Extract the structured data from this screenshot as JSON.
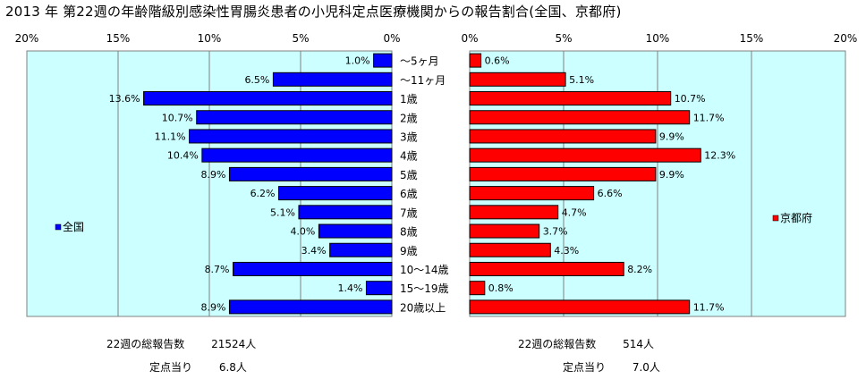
{
  "title": "2013 年 第22週の年齢階級別感染性胃腸炎患者の小児科定点医療機関からの報告割合(全国、京都府)",
  "chart_data": {
    "type": "bar",
    "orientation": "horizontal",
    "categories": [
      "～5ヶ月",
      "～11ヶ月",
      "1歳",
      "2歳",
      "3歳",
      "4歳",
      "5歳",
      "6歳",
      "7歳",
      "8歳",
      "9歳",
      "10～14歳",
      "15～19歳",
      "20歳以上"
    ],
    "series": [
      {
        "name": "全国",
        "values": [
          1.0,
          6.5,
          13.6,
          10.7,
          11.1,
          10.4,
          8.9,
          6.2,
          5.1,
          4.0,
          3.4,
          8.7,
          1.4,
          8.9
        ],
        "labels": [
          "1.0%",
          "6.5%",
          "13.6%",
          "10.7%",
          "11.1%",
          "10.4%",
          "8.9%",
          "6.2%",
          "5.1%",
          "4.0%",
          "3.4%",
          "8.7%",
          "1.4%",
          "8.9%"
        ],
        "color": "#0000ff",
        "direction": "left"
      },
      {
        "name": "京都府",
        "values": [
          0.6,
          5.1,
          10.7,
          11.7,
          9.9,
          12.3,
          9.9,
          6.6,
          4.7,
          3.7,
          4.3,
          8.2,
          0.8,
          11.7
        ],
        "labels": [
          "0.6%",
          "5.1%",
          "10.7%",
          "11.7%",
          "9.9%",
          "12.3%",
          "9.9%",
          "6.6%",
          "4.7%",
          "3.7%",
          "4.3%",
          "8.2%",
          "0.8%",
          "11.7%"
        ],
        "color": "#ff0000",
        "direction": "right"
      }
    ],
    "xlim": [
      0,
      20
    ],
    "ticks": [
      20,
      15,
      10,
      5,
      0
    ],
    "tick_labels_left": [
      "20%",
      "15%",
      "10%",
      "5%",
      "0%"
    ],
    "tick_labels_right": [
      "0%",
      "5%",
      "10%",
      "15%",
      "20%"
    ],
    "grid": true,
    "plot_background": "#ccffff",
    "legend_placement": "inside-left / inside-right"
  },
  "footer": {
    "national": {
      "total_label": "22週の総報告数",
      "total_value": "21524人",
      "per_site_label": "定点当り",
      "per_site_value": "6.8人"
    },
    "kyoto": {
      "total_label": "22週の総報告数",
      "total_value": "514人",
      "per_site_label": "定点当り",
      "per_site_value": "7.0人"
    }
  }
}
